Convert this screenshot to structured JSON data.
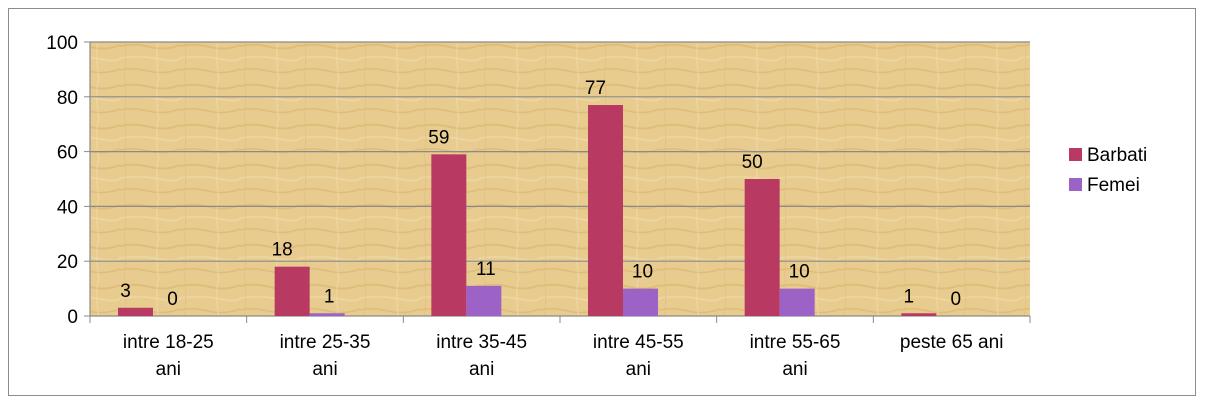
{
  "chart_data": {
    "type": "bar",
    "categories": [
      [
        "intre 18-25",
        "ani"
      ],
      [
        "intre 25-35",
        "ani"
      ],
      [
        "intre 35-45",
        "ani"
      ],
      [
        "intre 45-55",
        "ani"
      ],
      [
        "intre 55-65",
        "ani"
      ],
      [
        "peste 65 ani"
      ]
    ],
    "series": [
      {
        "name": "Barbati",
        "values": [
          3,
          18,
          59,
          77,
          50,
          1
        ],
        "color": "#b83a62"
      },
      {
        "name": "Femei",
        "values": [
          0,
          1,
          11,
          10,
          10,
          0
        ],
        "color": "#9d62c6"
      }
    ],
    "y_ticks": [
      "0",
      "20",
      "40",
      "60",
      "80",
      "100"
    ],
    "ylim": [
      0,
      100
    ],
    "grid": true,
    "data_labels": true,
    "legend_position": "right",
    "plot_background": "#e6c98c"
  }
}
